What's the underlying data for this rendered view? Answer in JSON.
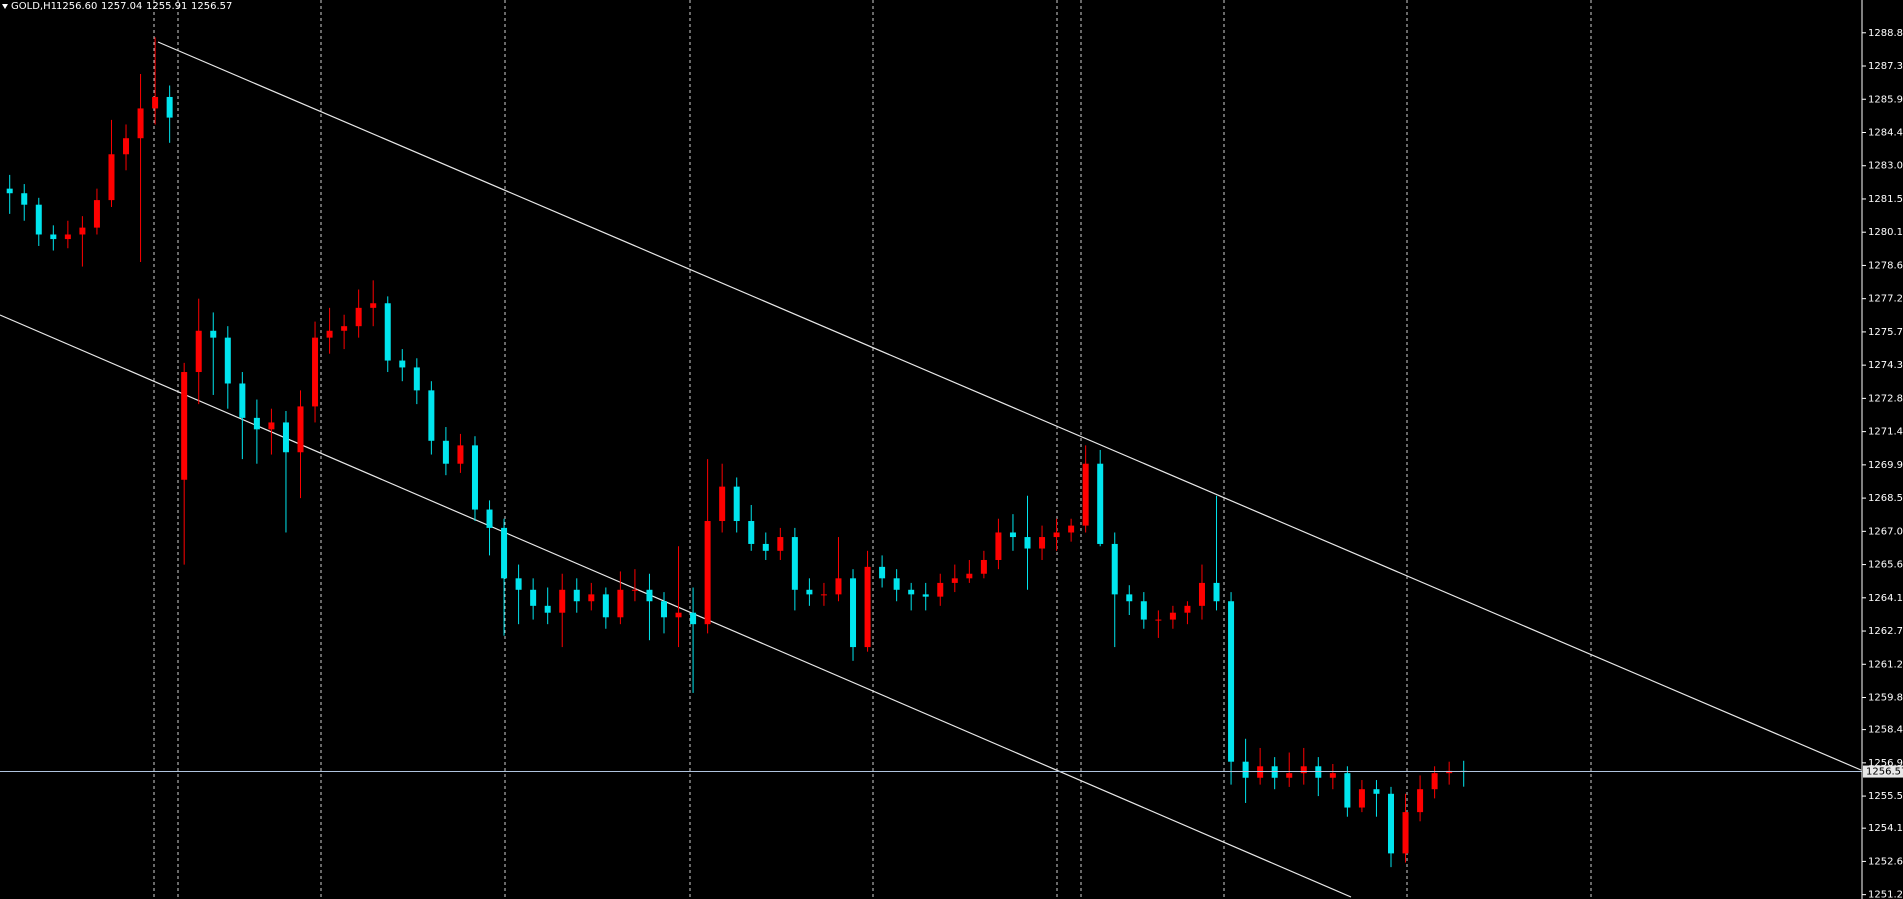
{
  "chart_data": {
    "type": "candlestick",
    "title": "GOLD,H1",
    "header_values": [
      {
        "value": 1256.6,
        "label": "1256.60"
      },
      {
        "value": 1257.04,
        "label": "1257.04"
      },
      {
        "value": 1255.91,
        "label": "1255.91"
      },
      {
        "value": 1256.57,
        "label": "1256.57"
      }
    ],
    "up_color": "#ff0000",
    "down_color": "#00e5ee",
    "price_line_color": "#b0c4de",
    "ylim": [
      1251.01,
      1290.23
    ],
    "yticks": [
      {
        "value": 1288.8,
        "label": "1288.80"
      },
      {
        "value": 1287.35,
        "label": "1287.35"
      },
      {
        "value": 1285.9,
        "label": "1285.90"
      },
      {
        "value": 1284.45,
        "label": "1284.45"
      },
      {
        "value": 1283.0,
        "label": "1283.00"
      },
      {
        "value": 1281.55,
        "label": "1281.55"
      },
      {
        "value": 1280.1,
        "label": "1280.10"
      },
      {
        "value": 1278.65,
        "label": "1278.65"
      },
      {
        "value": 1277.2,
        "label": "1277.20"
      },
      {
        "value": 1275.75,
        "label": "1275.75"
      },
      {
        "value": 1274.3,
        "label": "1274.30"
      },
      {
        "value": 1272.85,
        "label": "1272.85"
      },
      {
        "value": 1271.4,
        "label": "1271.40"
      },
      {
        "value": 1269.95,
        "label": "1269.95"
      },
      {
        "value": 1268.5,
        "label": "1268.50"
      },
      {
        "value": 1267.05,
        "label": "1267.05"
      },
      {
        "value": 1265.6,
        "label": "1265.60"
      },
      {
        "value": 1264.15,
        "label": "1264.15"
      },
      {
        "value": 1262.7,
        "label": "1262.70"
      },
      {
        "value": 1261.25,
        "label": "1261.25"
      },
      {
        "value": 1259.8,
        "label": "1259.80"
      },
      {
        "value": 1258.4,
        "label": "1258.40"
      },
      {
        "value": 1256.95,
        "label": "1256.95"
      },
      {
        "value": 1255.5,
        "label": "1255.50"
      },
      {
        "value": 1254.1,
        "label": "1254.10"
      },
      {
        "value": 1252.65,
        "label": "1252.65"
      },
      {
        "value": 1251.2,
        "label": "1251.20"
      }
    ],
    "ohlc": [
      [
        1282.0,
        1282.6,
        1280.9,
        1281.8
      ],
      [
        1281.8,
        1282.2,
        1280.6,
        1281.3
      ],
      [
        1281.3,
        1281.6,
        1279.5,
        1280.0
      ],
      [
        1280.0,
        1280.4,
        1279.3,
        1279.8
      ],
      [
        1279.8,
        1280.6,
        1279.4,
        1280.0
      ],
      [
        1280.0,
        1280.8,
        1278.6,
        1280.3
      ],
      [
        1280.3,
        1282.0,
        1280.0,
        1281.5
      ],
      [
        1281.5,
        1285.0,
        1281.2,
        1283.5
      ],
      [
        1283.5,
        1284.8,
        1282.8,
        1284.2
      ],
      [
        1284.2,
        1287.0,
        1278.8,
        1285.5
      ],
      [
        1285.5,
        1288.6,
        1284.8,
        1286.0
      ],
      [
        1286.0,
        1286.5,
        1284.0,
        1285.1
      ],
      [
        1269.3,
        1274.4,
        1265.6,
        1274.0
      ],
      [
        1274.0,
        1277.2,
        1272.6,
        1275.8
      ],
      [
        1275.8,
        1276.6,
        1273.0,
        1275.5
      ],
      [
        1275.5,
        1276.0,
        1272.4,
        1273.5
      ],
      [
        1273.5,
        1274.0,
        1270.2,
        1272.0
      ],
      [
        1272.0,
        1272.8,
        1270.0,
        1271.5
      ],
      [
        1271.5,
        1272.4,
        1270.4,
        1271.8
      ],
      [
        1271.8,
        1272.3,
        1267.0,
        1270.5
      ],
      [
        1270.5,
        1273.2,
        1268.5,
        1272.5
      ],
      [
        1272.5,
        1276.2,
        1271.8,
        1275.5
      ],
      [
        1275.5,
        1276.8,
        1274.8,
        1275.8
      ],
      [
        1275.8,
        1276.5,
        1275.0,
        1276.0
      ],
      [
        1276.0,
        1277.6,
        1275.5,
        1276.8
      ],
      [
        1276.8,
        1278.0,
        1276.0,
        1277.0
      ],
      [
        1277.0,
        1277.3,
        1274.0,
        1274.5
      ],
      [
        1274.5,
        1275.0,
        1273.6,
        1274.2
      ],
      [
        1274.2,
        1274.6,
        1272.6,
        1273.2
      ],
      [
        1273.2,
        1273.6,
        1270.4,
        1271.0
      ],
      [
        1271.0,
        1271.6,
        1269.5,
        1270.0
      ],
      [
        1270.0,
        1271.3,
        1269.6,
        1270.8
      ],
      [
        1270.8,
        1271.2,
        1267.5,
        1268.0
      ],
      [
        1268.0,
        1268.4,
        1266.0,
        1267.2
      ],
      [
        1267.2,
        1267.6,
        1262.5,
        1265.0
      ],
      [
        1265.0,
        1265.6,
        1263.0,
        1264.5
      ],
      [
        1264.5,
        1265.0,
        1263.2,
        1263.8
      ],
      [
        1263.8,
        1264.6,
        1263.0,
        1263.5
      ],
      [
        1263.5,
        1265.2,
        1262.0,
        1264.5
      ],
      [
        1264.5,
        1265.0,
        1263.5,
        1264.0
      ],
      [
        1264.0,
        1264.8,
        1263.6,
        1264.3
      ],
      [
        1264.3,
        1264.6,
        1262.8,
        1263.3
      ],
      [
        1263.3,
        1265.3,
        1263.0,
        1264.5
      ],
      [
        1264.5,
        1265.4,
        1264.0,
        1264.5
      ],
      [
        1264.5,
        1265.2,
        1262.3,
        1264.0
      ],
      [
        1264.0,
        1264.4,
        1262.6,
        1263.3
      ],
      [
        1263.3,
        1266.4,
        1262.0,
        1263.5
      ],
      [
        1263.5,
        1264.6,
        1260.0,
        1263.0
      ],
      [
        1263.0,
        1270.2,
        1262.6,
        1267.5
      ],
      [
        1267.5,
        1270.0,
        1267.0,
        1269.0
      ],
      [
        1269.0,
        1269.4,
        1267.0,
        1267.5
      ],
      [
        1267.5,
        1268.2,
        1266.2,
        1266.5
      ],
      [
        1266.5,
        1267.0,
        1265.8,
        1266.2
      ],
      [
        1266.2,
        1267.2,
        1265.8,
        1266.8
      ],
      [
        1266.8,
        1267.2,
        1263.6,
        1264.5
      ],
      [
        1264.5,
        1265.0,
        1263.8,
        1264.3
      ],
      [
        1264.3,
        1264.8,
        1263.8,
        1264.3
      ],
      [
        1264.3,
        1266.8,
        1264.0,
        1265.0
      ],
      [
        1265.0,
        1265.4,
        1261.4,
        1262.0
      ],
      [
        1262.0,
        1266.2,
        1261.8,
        1265.5
      ],
      [
        1265.5,
        1266.0,
        1264.6,
        1265.0
      ],
      [
        1265.0,
        1265.4,
        1264.0,
        1264.5
      ],
      [
        1264.5,
        1264.8,
        1263.6,
        1264.3
      ],
      [
        1264.3,
        1264.8,
        1263.6,
        1264.2
      ],
      [
        1264.2,
        1265.2,
        1263.8,
        1264.8
      ],
      [
        1264.8,
        1265.6,
        1264.4,
        1265.0
      ],
      [
        1265.0,
        1265.8,
        1264.8,
        1265.2
      ],
      [
        1265.2,
        1266.2,
        1265.0,
        1265.8
      ],
      [
        1265.8,
        1267.6,
        1265.4,
        1267.0
      ],
      [
        1267.0,
        1267.8,
        1266.2,
        1266.8
      ],
      [
        1266.8,
        1268.6,
        1264.5,
        1266.3
      ],
      [
        1266.3,
        1267.3,
        1265.8,
        1266.8
      ],
      [
        1266.8,
        1267.6,
        1266.2,
        1267.0
      ],
      [
        1267.0,
        1267.6,
        1266.6,
        1267.3
      ],
      [
        1267.3,
        1270.8,
        1267.0,
        1270.0
      ],
      [
        1270.0,
        1270.6,
        1266.4,
        1266.5
      ],
      [
        1266.5,
        1267.0,
        1262.0,
        1264.3
      ],
      [
        1264.3,
        1264.7,
        1263.4,
        1264.0
      ],
      [
        1264.0,
        1264.4,
        1262.8,
        1263.2
      ],
      [
        1263.2,
        1263.6,
        1262.4,
        1263.2
      ],
      [
        1263.2,
        1263.8,
        1262.8,
        1263.5
      ],
      [
        1263.5,
        1264.0,
        1263.0,
        1263.8
      ],
      [
        1263.8,
        1265.6,
        1263.2,
        1264.8
      ],
      [
        1264.8,
        1268.6,
        1263.6,
        1264.0
      ],
      [
        1264.0,
        1264.4,
        1256.0,
        1257.0
      ],
      [
        1257.0,
        1258.0,
        1255.2,
        1256.3
      ],
      [
        1256.3,
        1257.6,
        1256.0,
        1256.8
      ],
      [
        1256.8,
        1257.2,
        1255.8,
        1256.3
      ],
      [
        1256.3,
        1257.4,
        1255.9,
        1256.5
      ],
      [
        1256.5,
        1257.6,
        1256.0,
        1256.8
      ],
      [
        1256.8,
        1257.2,
        1255.5,
        1256.3
      ],
      [
        1256.3,
        1256.9,
        1255.8,
        1256.5
      ],
      [
        1256.5,
        1256.8,
        1254.6,
        1255.0
      ],
      [
        1255.0,
        1256.2,
        1254.8,
        1255.8
      ],
      [
        1255.8,
        1256.2,
        1254.6,
        1255.6
      ],
      [
        1255.6,
        1255.9,
        1252.4,
        1253.0
      ],
      [
        1253.0,
        1255.6,
        1252.6,
        1254.8
      ],
      [
        1254.8,
        1256.4,
        1254.4,
        1255.8
      ],
      [
        1255.8,
        1256.8,
        1255.4,
        1256.5
      ],
      [
        1256.5,
        1257.0,
        1256.0,
        1256.6
      ],
      [
        1256.6,
        1257.04,
        1255.91,
        1256.57
      ]
    ]
  }
}
